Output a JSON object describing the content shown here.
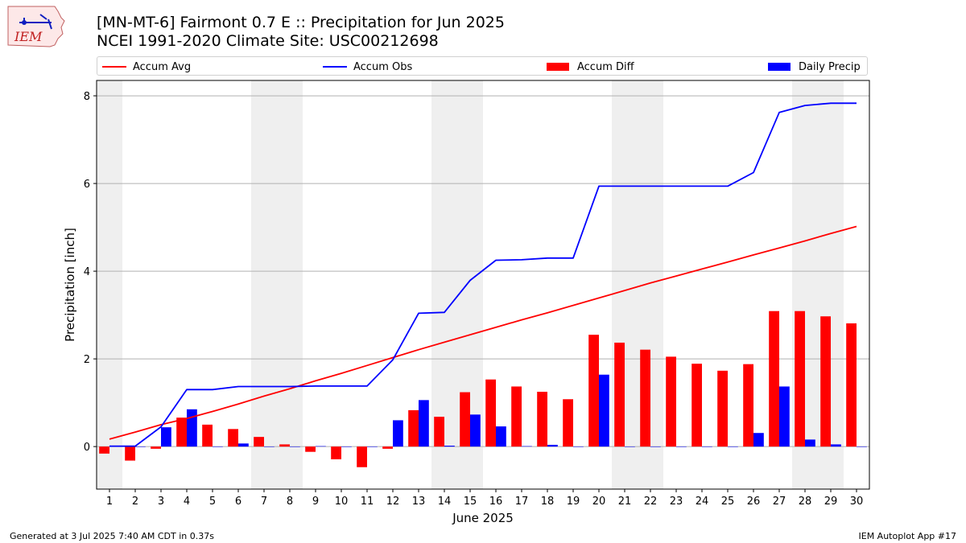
{
  "header": {
    "title_line1": "[MN-MT-6] Fairmont 0.7 E :: Precipitation for Jun 2025",
    "title_line2": "NCEI 1991-2020 Climate Site: USC00212698",
    "logo_text": "IEM"
  },
  "footer": {
    "generated": "Generated at 3 Jul 2025 7:40 AM CDT in 0.37s",
    "app": "IEM Autoplot App #17"
  },
  "colors": {
    "avg": "#ff0000",
    "obs": "#0000ff",
    "diff": "#ff0000",
    "daily": "#0000ff",
    "weekend": "#efefef",
    "grid": "#b0b0b0"
  },
  "chart_data": {
    "type": "bar",
    "xlabel": "June 2025",
    "ylabel": "Precipitation [inch]",
    "xlim": [
      0.5,
      30.5
    ],
    "ylim": [
      -0.97,
      8.35
    ],
    "yticks": [
      0,
      2,
      4,
      6,
      8
    ],
    "x": [
      1,
      2,
      3,
      4,
      5,
      6,
      7,
      8,
      9,
      10,
      11,
      12,
      13,
      14,
      15,
      16,
      17,
      18,
      19,
      20,
      21,
      22,
      23,
      24,
      25,
      26,
      27,
      28,
      29,
      30
    ],
    "weekend_days": [
      1,
      7,
      8,
      14,
      15,
      21,
      22,
      28,
      29
    ],
    "grid": "horizontal",
    "legend_position": "top",
    "legend": [
      "Accum Avg",
      "Accum Obs",
      "Accum Diff",
      "Daily Precip"
    ],
    "series": [
      {
        "name": "Accum Avg",
        "kind": "line",
        "values": [
          0.17,
          0.33,
          0.5,
          0.64,
          0.8,
          0.97,
          1.15,
          1.32,
          1.5,
          1.67,
          1.85,
          2.03,
          2.21,
          2.38,
          2.55,
          2.72,
          2.89,
          3.05,
          3.22,
          3.39,
          3.56,
          3.73,
          3.89,
          4.05,
          4.21,
          4.37,
          4.53,
          4.69,
          4.86,
          5.02
        ]
      },
      {
        "name": "Accum Obs",
        "kind": "line",
        "values": [
          0.01,
          0.01,
          0.45,
          1.3,
          1.3,
          1.37,
          1.37,
          1.37,
          1.38,
          1.38,
          1.38,
          1.98,
          3.04,
          3.06,
          3.79,
          4.25,
          4.26,
          4.3,
          4.3,
          5.94,
          5.94,
          5.94,
          5.94,
          5.94,
          5.94,
          6.25,
          7.62,
          7.78,
          7.83,
          7.83
        ]
      },
      {
        "name": "Accum Diff",
        "kind": "bar",
        "values": [
          -0.16,
          -0.32,
          -0.05,
          0.66,
          0.5,
          0.4,
          0.22,
          0.05,
          -0.12,
          -0.29,
          -0.47,
          -0.05,
          0.83,
          0.68,
          1.24,
          1.53,
          1.37,
          1.25,
          1.08,
          2.55,
          2.37,
          2.21,
          2.05,
          1.89,
          1.73,
          1.88,
          3.09,
          3.09,
          2.97,
          2.81
        ]
      },
      {
        "name": "Daily Precip",
        "kind": "bar",
        "values": [
          0.01,
          0.0,
          0.44,
          0.85,
          0.0,
          0.07,
          0.0,
          0.0,
          0.01,
          0.0,
          0.0,
          0.6,
          1.06,
          0.02,
          0.73,
          0.46,
          0.01,
          0.04,
          0.0,
          1.64,
          0.0,
          0.0,
          0.0,
          0.0,
          0.0,
          0.31,
          1.37,
          0.16,
          0.05,
          0.0
        ]
      }
    ]
  }
}
